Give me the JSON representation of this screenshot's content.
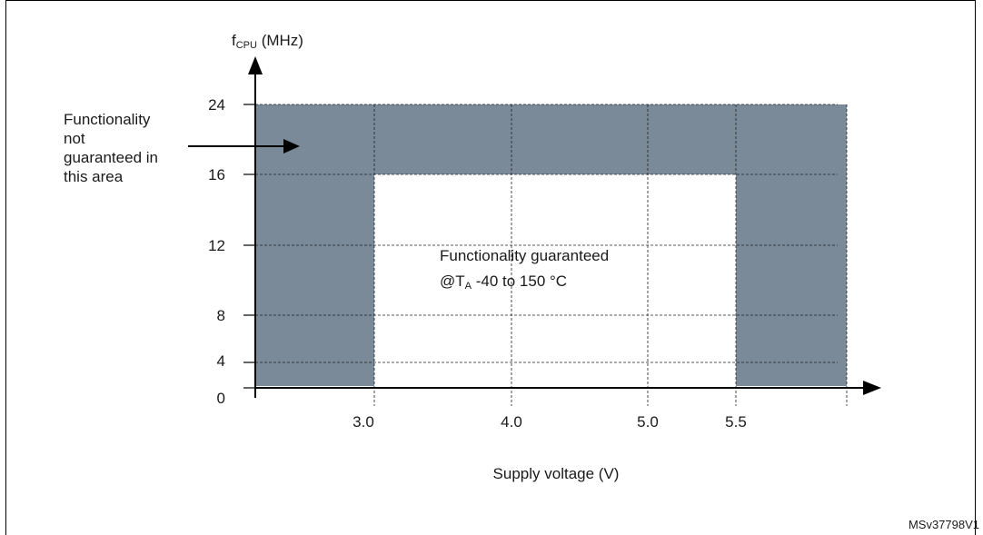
{
  "chart_data": {
    "type": "area",
    "y_label_main": "f",
    "y_label_sub": "CPU",
    "y_label_unit": " (MHz)",
    "xlabel": "Supply voltage (V)",
    "x_ticks": [
      3.0,
      4.0,
      5.0,
      5.5
    ],
    "x_tick_labels": [
      "3.0",
      "4.0",
      "5.0",
      "5.5"
    ],
    "y_ticks": [
      0,
      4,
      8,
      12,
      16,
      24
    ],
    "y_tick_labels": [
      "0",
      "4",
      "8",
      "12",
      "16",
      "24"
    ],
    "xlim": [
      2.2,
      5.9
    ],
    "ylim": [
      0,
      24
    ],
    "grid": true,
    "guaranteed_region": {
      "x": [
        3.0,
        5.5
      ],
      "y": [
        0,
        16
      ]
    },
    "not_guaranteed_region": {
      "x": [
        2.2,
        5.9
      ],
      "y": [
        0,
        24
      ]
    },
    "fill_color": "#7a8a99",
    "annotations": {
      "not_guaranteed": [
        "Functionality",
        "not",
        "guaranteed in",
        "this area"
      ],
      "guaranteed_line1": "Functionality guaranteed",
      "guaranteed_line2_prefix": "@T",
      "guaranteed_line2_sub": "A",
      "guaranteed_line2_suffix": " -40 to 150 °C"
    }
  },
  "reference_code": "MSv37798V1"
}
